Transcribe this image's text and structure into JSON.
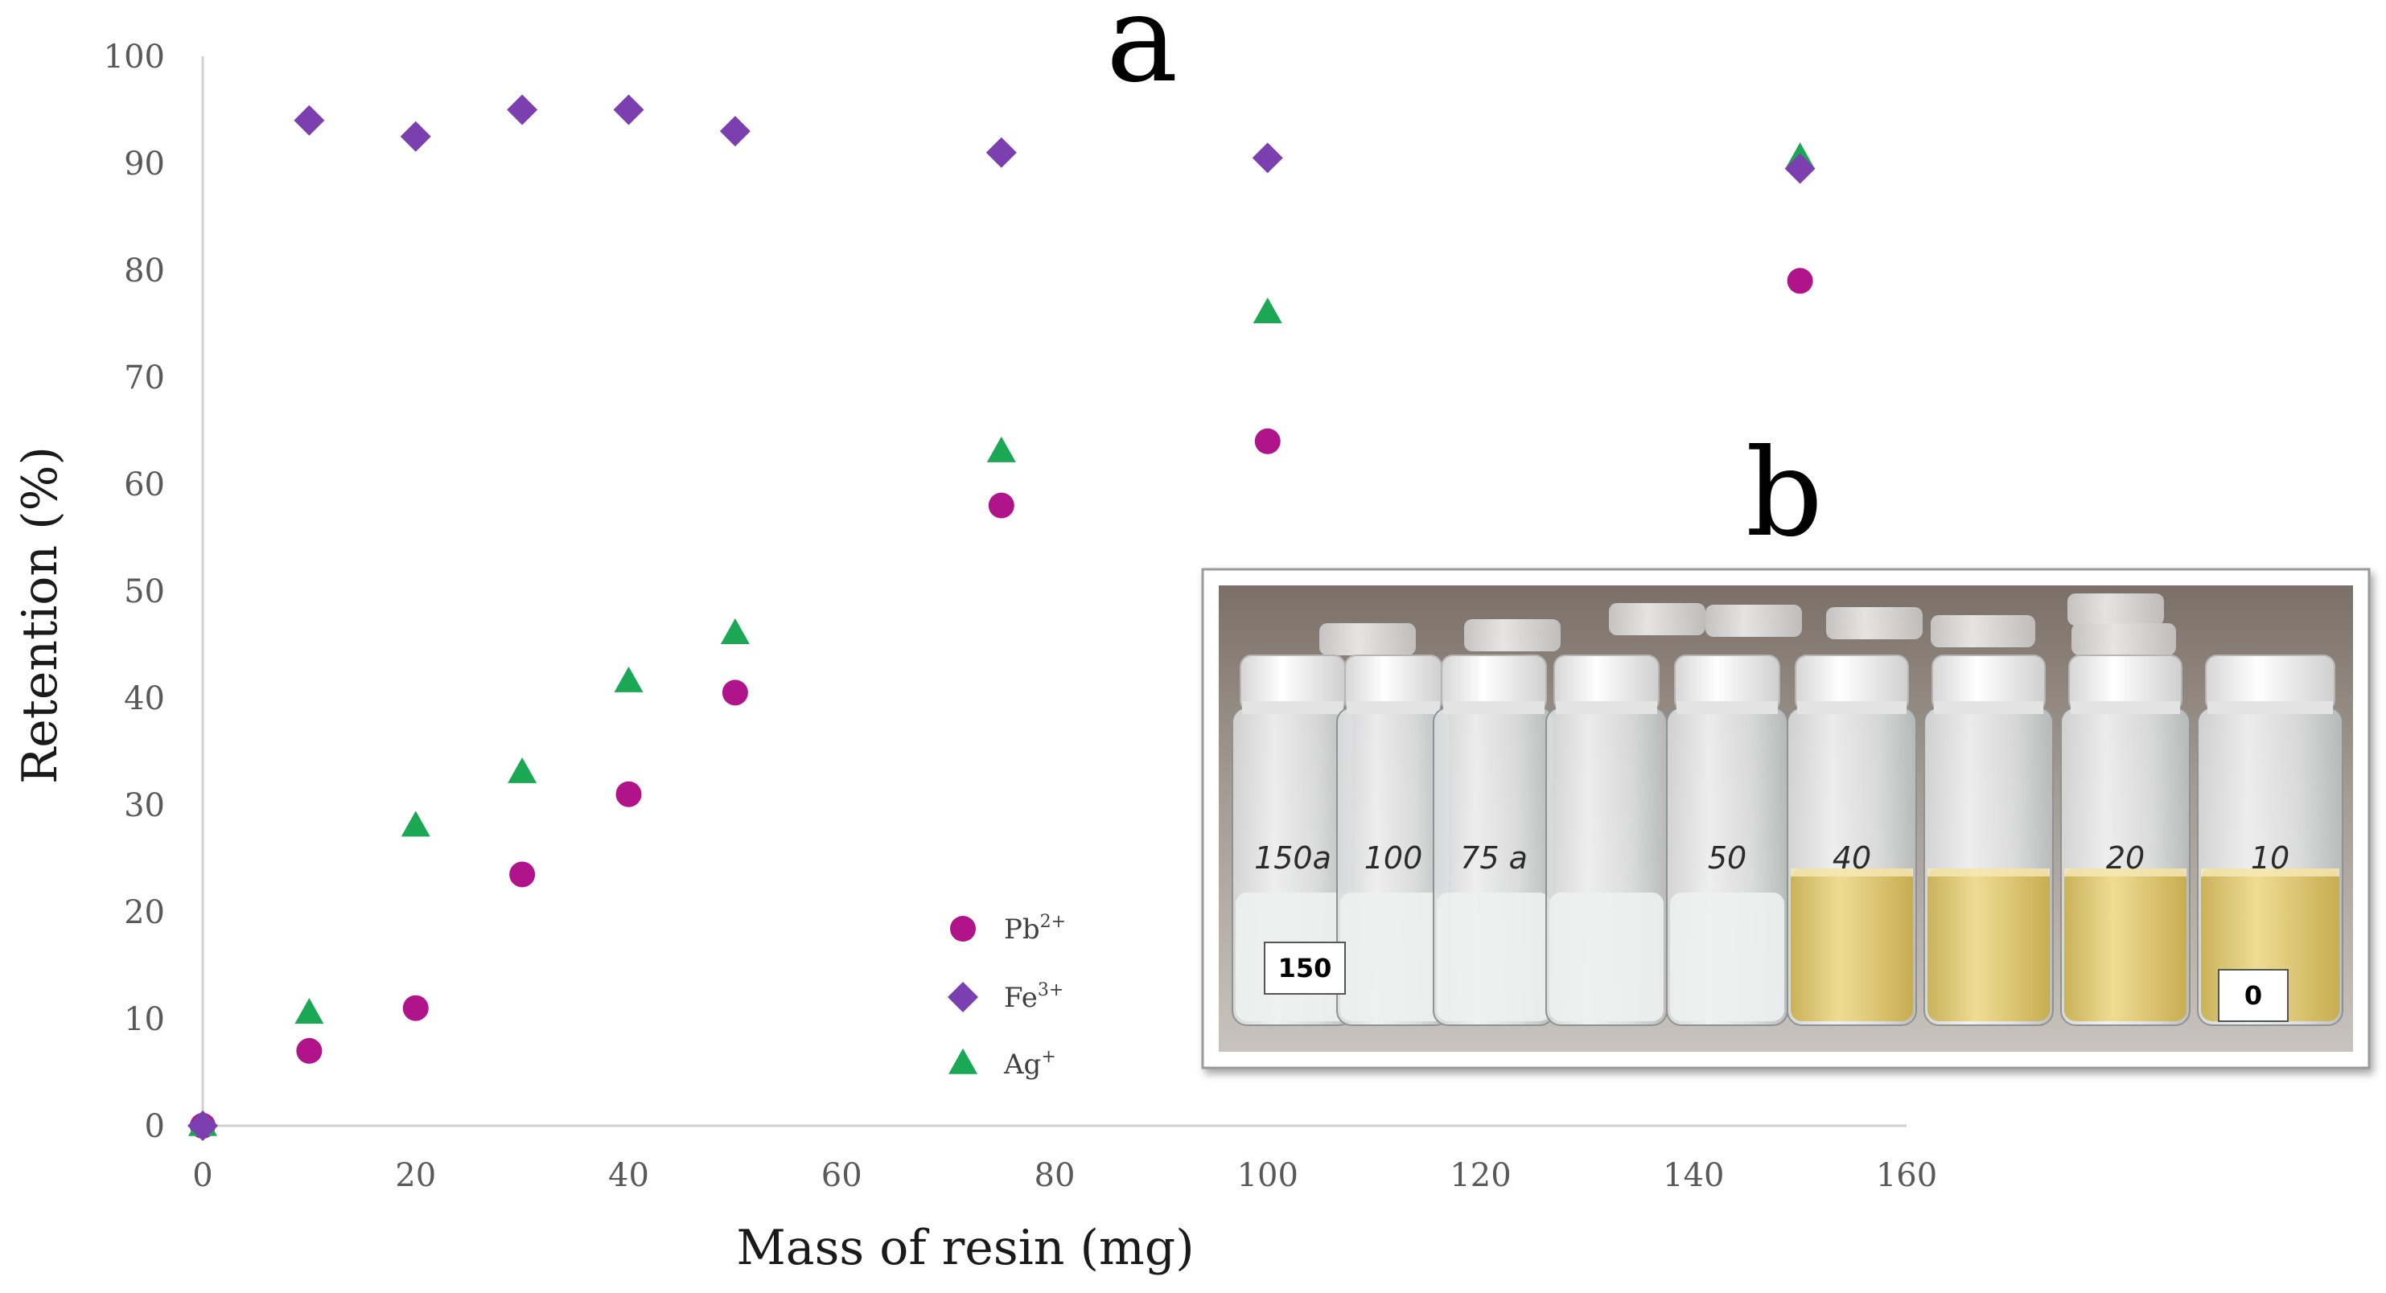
{
  "chart_data": {
    "type": "scatter",
    "xlabel": "Mass of resin (mg)",
    "ylabel": "Retention (%)",
    "xlim": [
      0,
      160
    ],
    "ylim": [
      0,
      100
    ],
    "xticks": [
      0,
      20,
      40,
      60,
      80,
      100,
      120,
      140,
      160
    ],
    "yticks": [
      0,
      10,
      20,
      30,
      40,
      50,
      60,
      70,
      80,
      90,
      100
    ],
    "grid": false,
    "legend_position": "bottom-center",
    "series": [
      {
        "name": "Pb2+",
        "label_base": "Pb",
        "label_sup": "2+",
        "marker": "circle",
        "color": "#b0138a",
        "points": [
          [
            0,
            0
          ],
          [
            10,
            7
          ],
          [
            20,
            11
          ],
          [
            30,
            23.5
          ],
          [
            40,
            31
          ],
          [
            50,
            40.5
          ],
          [
            75,
            58
          ],
          [
            100,
            64
          ],
          [
            150,
            79
          ]
        ]
      },
      {
        "name": "Fe3+",
        "label_base": "Fe",
        "label_sup": "3+",
        "marker": "diamond",
        "color": "#7b3fb0",
        "points": [
          [
            0,
            0
          ],
          [
            10,
            94
          ],
          [
            20,
            92.5
          ],
          [
            30,
            95
          ],
          [
            40,
            95
          ],
          [
            50,
            93
          ],
          [
            75,
            91
          ],
          [
            100,
            90.5
          ],
          [
            150,
            89.5
          ]
        ]
      },
      {
        "name": "Ag+",
        "label_base": "Ag",
        "label_sup": "+",
        "marker": "triangle",
        "color": "#1aa855",
        "points": [
          [
            0,
            0
          ],
          [
            10,
            10.5
          ],
          [
            20,
            28
          ],
          [
            30,
            33
          ],
          [
            40,
            41.5
          ],
          [
            50,
            46
          ],
          [
            75,
            63
          ],
          [
            100,
            76
          ],
          [
            150,
            90.5
          ]
        ]
      }
    ]
  },
  "panel_labels": {
    "a": "a",
    "b": "b"
  },
  "photo": {
    "label_left": "150",
    "label_right": "0",
    "vial_marks": [
      "150a",
      "100",
      "75 a",
      "",
      "50",
      "40",
      "",
      "20",
      "10",
      ""
    ]
  }
}
